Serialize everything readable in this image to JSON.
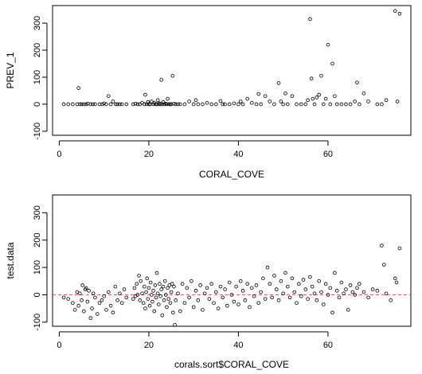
{
  "chart_data": [
    {
      "type": "scatter",
      "title": "",
      "xlabel": "CORAL_COVE",
      "ylabel": "PREV_1",
      "xlim": [
        -1.5,
        78.5
      ],
      "ylim": [
        -115,
        365
      ],
      "x_ticks": [
        0,
        20,
        40,
        60
      ],
      "y_ticks": [
        -100,
        0,
        100,
        200,
        300
      ],
      "x_tick_labels": [
        "0",
        "20",
        "40",
        "60"
      ],
      "y_tick_labels": [
        "-100",
        "0",
        "100",
        "200",
        "300"
      ],
      "grid": false,
      "legend": "none",
      "point_color": "#000000",
      "points": [
        [
          1,
          0
        ],
        [
          2,
          0
        ],
        [
          3,
          0
        ],
        [
          4,
          0
        ],
        [
          4.3,
          60
        ],
        [
          4.6,
          0
        ],
        [
          5,
          0
        ],
        [
          5.5,
          0
        ],
        [
          6,
          0
        ],
        [
          6.4,
          2
        ],
        [
          7,
          0
        ],
        [
          7.5,
          0
        ],
        [
          8,
          0
        ],
        [
          9,
          0
        ],
        [
          9.6,
          0
        ],
        [
          10,
          3
        ],
        [
          10.5,
          0
        ],
        [
          11,
          30
        ],
        [
          11.5,
          0
        ],
        [
          12,
          10
        ],
        [
          12.6,
          0
        ],
        [
          13,
          0
        ],
        [
          13.5,
          0
        ],
        [
          14,
          0
        ],
        [
          15,
          0
        ],
        [
          16.5,
          0
        ],
        [
          17,
          2
        ],
        [
          17.5,
          0
        ],
        [
          18,
          0
        ],
        [
          18.5,
          5
        ],
        [
          19,
          0
        ],
        [
          19.2,
          35
        ],
        [
          19.5,
          0
        ],
        [
          19.8,
          8
        ],
        [
          20,
          0
        ],
        [
          20.3,
          0
        ],
        [
          20.6,
          10
        ],
        [
          21,
          0
        ],
        [
          21.2,
          5
        ],
        [
          21.5,
          0
        ],
        [
          21.8,
          0
        ],
        [
          22,
          15
        ],
        [
          22.2,
          0
        ],
        [
          22.4,
          3
        ],
        [
          22.6,
          0
        ],
        [
          22.8,
          90
        ],
        [
          23,
          0
        ],
        [
          23.2,
          8
        ],
        [
          23.5,
          0
        ],
        [
          23.8,
          2
        ],
        [
          24,
          0
        ],
        [
          24.2,
          20
        ],
        [
          24.5,
          0
        ],
        [
          24.8,
          0
        ],
        [
          25,
          0
        ],
        [
          25.3,
          105
        ],
        [
          25.6,
          2
        ],
        [
          26,
          0
        ],
        [
          26.5,
          0
        ],
        [
          27,
          0
        ],
        [
          28,
          0
        ],
        [
          29,
          10
        ],
        [
          30,
          0
        ],
        [
          30.5,
          15
        ],
        [
          31,
          0
        ],
        [
          32,
          0
        ],
        [
          33,
          5
        ],
        [
          34,
          0
        ],
        [
          35,
          0
        ],
        [
          36,
          12
        ],
        [
          36.5,
          0
        ],
        [
          37,
          0
        ],
        [
          38,
          0
        ],
        [
          39,
          3
        ],
        [
          40,
          0
        ],
        [
          40.5,
          10
        ],
        [
          41,
          0
        ],
        [
          42,
          20
        ],
        [
          43,
          5
        ],
        [
          44,
          0
        ],
        [
          44.5,
          38
        ],
        [
          45,
          0
        ],
        [
          46,
          30
        ],
        [
          47,
          10
        ],
        [
          48,
          0
        ],
        [
          49,
          78
        ],
        [
          49.5,
          10
        ],
        [
          50,
          0
        ],
        [
          50.5,
          40
        ],
        [
          51,
          0
        ],
        [
          52,
          30
        ],
        [
          53,
          0
        ],
        [
          54,
          0
        ],
        [
          55,
          0
        ],
        [
          55.5,
          15
        ],
        [
          56,
          315
        ],
        [
          56.3,
          95
        ],
        [
          56.6,
          20
        ],
        [
          57,
          0
        ],
        [
          57.5,
          25
        ],
        [
          58,
          35
        ],
        [
          58.5,
          105
        ],
        [
          59,
          0
        ],
        [
          59.5,
          20
        ],
        [
          60,
          220
        ],
        [
          60.5,
          0
        ],
        [
          61,
          150
        ],
        [
          61.5,
          30
        ],
        [
          62,
          0
        ],
        [
          63,
          0
        ],
        [
          64,
          0
        ],
        [
          65,
          0
        ],
        [
          66,
          10
        ],
        [
          66.5,
          80
        ],
        [
          67,
          0
        ],
        [
          68,
          40
        ],
        [
          69,
          10
        ],
        [
          71,
          0
        ],
        [
          72,
          0
        ],
        [
          73,
          15
        ],
        [
          75,
          345
        ],
        [
          75.5,
          10
        ],
        [
          76,
          335
        ]
      ]
    },
    {
      "type": "scatter",
      "title": "",
      "xlabel": "corals.sort$CORAL_COVE",
      "ylabel": "test.data",
      "xlim": [
        -1.5,
        78.5
      ],
      "ylim": [
        -115,
        365
      ],
      "x_ticks": [
        0,
        20,
        40,
        60
      ],
      "y_ticks": [
        -100,
        0,
        100,
        200,
        300
      ],
      "x_tick_labels": [
        "0",
        "20",
        "40",
        "60"
      ],
      "y_tick_labels": [
        "-100",
        "0",
        "100",
        "200",
        "300"
      ],
      "grid": false,
      "legend": "none",
      "reference_line": {
        "y": 0,
        "color": "#e06060",
        "style": "dashed"
      },
      "point_color": "#000000",
      "points": [
        [
          1,
          -10
        ],
        [
          2,
          -15
        ],
        [
          3,
          -30
        ],
        [
          3.5,
          -55
        ],
        [
          4,
          10
        ],
        [
          4.3,
          -40
        ],
        [
          4.6,
          5
        ],
        [
          5,
          -20
        ],
        [
          5.2,
          35
        ],
        [
          5.5,
          -60
        ],
        [
          5.8,
          20
        ],
        [
          6,
          25
        ],
        [
          6.3,
          -25
        ],
        [
          6.6,
          15
        ],
        [
          7,
          -85
        ],
        [
          7.3,
          -50
        ],
        [
          7.6,
          5
        ],
        [
          8,
          -10
        ],
        [
          8.5,
          -70
        ],
        [
          9,
          -30
        ],
        [
          9.5,
          -20
        ],
        [
          10,
          -5
        ],
        [
          10.5,
          -55
        ],
        [
          11,
          10
        ],
        [
          11.5,
          -40
        ],
        [
          12,
          -65
        ],
        [
          12.5,
          30
        ],
        [
          13,
          -20
        ],
        [
          13.5,
          5
        ],
        [
          14,
          -30
        ],
        [
          14.5,
          20
        ],
        [
          15,
          -10
        ],
        [
          16.5,
          -15
        ],
        [
          16.8,
          25
        ],
        [
          17,
          -5
        ],
        [
          17.3,
          40
        ],
        [
          17.5,
          0
        ],
        [
          17.8,
          70
        ],
        [
          18,
          -20
        ],
        [
          18.2,
          50
        ],
        [
          18.5,
          5
        ],
        [
          18.8,
          -30
        ],
        [
          19,
          30
        ],
        [
          19.2,
          -50
        ],
        [
          19.4,
          10
        ],
        [
          19.6,
          60
        ],
        [
          19.8,
          -15
        ],
        [
          20,
          25
        ],
        [
          20.2,
          -40
        ],
        [
          20.4,
          45
        ],
        [
          20.6,
          0
        ],
        [
          20.8,
          -25
        ],
        [
          21,
          15
        ],
        [
          21.2,
          -60
        ],
        [
          21.4,
          35
        ],
        [
          21.6,
          -10
        ],
        [
          21.8,
          80
        ],
        [
          22,
          5
        ],
        [
          22.2,
          -35
        ],
        [
          22.4,
          40
        ],
        [
          22.6,
          -5
        ],
        [
          22.8,
          20
        ],
        [
          23,
          -75
        ],
        [
          23.2,
          30
        ],
        [
          23.4,
          -20
        ],
        [
          23.6,
          50
        ],
        [
          23.8,
          0
        ],
        [
          24,
          -45
        ],
        [
          24.2,
          25
        ],
        [
          24.4,
          -15
        ],
        [
          24.6,
          35
        ],
        [
          24.8,
          -30
        ],
        [
          25,
          10
        ],
        [
          25.2,
          40
        ],
        [
          25.4,
          -65
        ],
        [
          25.6,
          30
        ],
        [
          25.8,
          -110
        ],
        [
          26,
          -20
        ],
        [
          26.5,
          5
        ],
        [
          27,
          -60
        ],
        [
          27.5,
          40
        ],
        [
          28,
          -30
        ],
        [
          28.5,
          25
        ],
        [
          29,
          -10
        ],
        [
          29.5,
          50
        ],
        [
          30,
          -45
        ],
        [
          30.5,
          15
        ],
        [
          31,
          -20
        ],
        [
          31.5,
          35
        ],
        [
          32,
          -55
        ],
        [
          32.5,
          5
        ],
        [
          33,
          25
        ],
        [
          33.5,
          -15
        ],
        [
          34,
          40
        ],
        [
          34.5,
          -30
        ],
        [
          35,
          10
        ],
        [
          35.5,
          -50
        ],
        [
          36,
          30
        ],
        [
          36.5,
          -10
        ],
        [
          37,
          20
        ],
        [
          37.5,
          -40
        ],
        [
          38,
          45
        ],
        [
          38.5,
          0
        ],
        [
          39,
          -25
        ],
        [
          39.5,
          30
        ],
        [
          40,
          -35
        ],
        [
          40.5,
          50
        ],
        [
          41,
          15
        ],
        [
          41.5,
          -20
        ],
        [
          42,
          40
        ],
        [
          42.5,
          -45
        ],
        [
          43,
          25
        ],
        [
          43.5,
          -5
        ],
        [
          44,
          35
        ],
        [
          44.5,
          -30
        ],
        [
          45,
          10
        ],
        [
          45.5,
          60
        ],
        [
          46,
          -15
        ],
        [
          46.5,
          100
        ],
        [
          47,
          40
        ],
        [
          47.5,
          -10
        ],
        [
          48,
          70
        ],
        [
          48.5,
          20
        ],
        [
          49,
          -20
        ],
        [
          49.5,
          50
        ],
        [
          50,
          5
        ],
        [
          50.5,
          80
        ],
        [
          51,
          30
        ],
        [
          51.5,
          -10
        ],
        [
          52,
          60
        ],
        [
          52.5,
          10
        ],
        [
          53,
          -30
        ],
        [
          53.5,
          40
        ],
        [
          54,
          -5
        ],
        [
          54.5,
          55
        ],
        [
          55,
          20
        ],
        [
          55.5,
          -15
        ],
        [
          56,
          65
        ],
        [
          56.5,
          30
        ],
        [
          57,
          5
        ],
        [
          57.5,
          -20
        ],
        [
          58,
          50
        ],
        [
          58.5,
          10
        ],
        [
          59,
          -35
        ],
        [
          59.5,
          40
        ],
        [
          60,
          0
        ],
        [
          60.5,
          25
        ],
        [
          61,
          -65
        ],
        [
          61.5,
          80
        ],
        [
          62,
          15
        ],
        [
          62.5,
          -10
        ],
        [
          63,
          45
        ],
        [
          63.5,
          5
        ],
        [
          64,
          20
        ],
        [
          64.5,
          -55
        ],
        [
          65,
          35
        ],
        [
          65.5,
          10
        ],
        [
          66,
          0
        ],
        [
          66.5,
          25
        ],
        [
          67,
          40
        ],
        [
          68,
          10
        ],
        [
          69,
          -10
        ],
        [
          70,
          20
        ],
        [
          71,
          15
        ],
        [
          72,
          180
        ],
        [
          72.5,
          110
        ],
        [
          73,
          5
        ],
        [
          74,
          -20
        ],
        [
          75,
          60
        ],
        [
          75.3,
          45
        ],
        [
          76,
          170
        ]
      ]
    }
  ]
}
